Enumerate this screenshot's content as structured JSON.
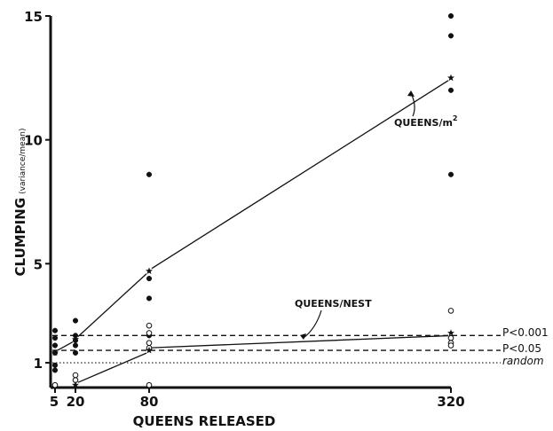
{
  "chart_data": {
    "type": "scatter",
    "xlabel": "QUEENS RELEASED",
    "ylabel": "CLUMPING",
    "ylabel_sub": "(variance/mean)",
    "x_ticks": [
      5,
      20,
      80,
      320
    ],
    "y_ticks": [
      1,
      5,
      10,
      15
    ],
    "xlim": [
      5,
      320
    ],
    "ylim": [
      0,
      15
    ],
    "x_scale": "log",
    "series": [
      {
        "name": "QUEENS/m²",
        "annotation": "QUEENS/m",
        "annotation_sup": "2",
        "marker": "filled-circle",
        "points": [
          {
            "x": 5,
            "y": 2.3
          },
          {
            "x": 5,
            "y": 2.0
          },
          {
            "x": 5,
            "y": 1.7
          },
          {
            "x": 5,
            "y": 1.4
          },
          {
            "x": 5,
            "y": 0.9
          },
          {
            "x": 5,
            "y": 0.7
          },
          {
            "x": 20,
            "y": 2.7
          },
          {
            "x": 20,
            "y": 2.1
          },
          {
            "x": 20,
            "y": 1.9
          },
          {
            "x": 20,
            "y": 1.7
          },
          {
            "x": 20,
            "y": 1.4
          },
          {
            "x": 80,
            "y": 8.6
          },
          {
            "x": 80,
            "y": 4.4
          },
          {
            "x": 80,
            "y": 3.6
          },
          {
            "x": 80,
            "y": 2.1
          },
          {
            "x": 80,
            "y": 1.8
          },
          {
            "x": 320,
            "y": 15.0
          },
          {
            "x": 320,
            "y": 14.2
          },
          {
            "x": 320,
            "y": 12.0
          },
          {
            "x": 320,
            "y": 8.6
          }
        ],
        "means": [
          {
            "x": 5,
            "y": 1.4
          },
          {
            "x": 20,
            "y": 1.95
          },
          {
            "x": 80,
            "y": 4.7
          },
          {
            "x": 320,
            "y": 12.5
          }
        ]
      },
      {
        "name": "QUEENS/NEST",
        "annotation": "QUEENS/NEST",
        "marker": "open-circle",
        "points": [
          {
            "x": 5,
            "y": 0.1
          },
          {
            "x": 20,
            "y": 0.5
          },
          {
            "x": 20,
            "y": 0.3
          },
          {
            "x": 80,
            "y": 2.5
          },
          {
            "x": 80,
            "y": 2.2
          },
          {
            "x": 80,
            "y": 1.8
          },
          {
            "x": 80,
            "y": 1.6
          },
          {
            "x": 80,
            "y": 0.1
          },
          {
            "x": 320,
            "y": 3.1
          },
          {
            "x": 320,
            "y": 2.0
          },
          {
            "x": 320,
            "y": 1.8
          },
          {
            "x": 320,
            "y": 1.7
          }
        ],
        "means": [
          {
            "x": 20,
            "y": 0.1
          },
          {
            "x": 80,
            "y": 1.5
          },
          {
            "x": 320,
            "y": 2.2
          }
        ]
      }
    ],
    "reference_lines": [
      {
        "label": "P<0.001",
        "y": 2.1,
        "style": "dashed"
      },
      {
        "label": "P<0.05",
        "y": 1.5,
        "style": "dashed"
      },
      {
        "label": "random",
        "y": 1.0,
        "style": "dotted"
      }
    ],
    "grid": false,
    "legend": "none"
  }
}
